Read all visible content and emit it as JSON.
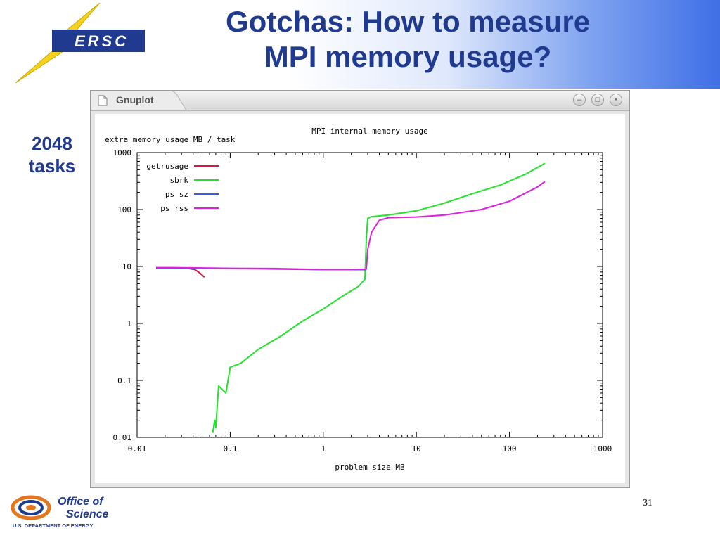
{
  "slide": {
    "title_line1": "Gotchas: How to measure",
    "title_line2": "MPI memory usage?",
    "side_label_line1": "2048",
    "side_label_line2": "tasks",
    "page_number": "31"
  },
  "logos": {
    "nersc_text": "ERSC",
    "office_line1": "Office of",
    "office_line2": "Science",
    "office_line3": "U.S. DEPARTMENT OF ENERGY"
  },
  "window": {
    "title": "Gnuplot",
    "icon": "document-icon",
    "controls": [
      "minimize-icon",
      "maximize-icon",
      "close-icon"
    ]
  },
  "colors": {
    "title": "#1f3a8f",
    "getrusage": "#d8173d",
    "sbrk": "#22e22a",
    "ps_sz": "#3b5bdb",
    "ps_rss": "#e01ee0"
  },
  "chart_data": {
    "type": "line",
    "title": "MPI internal memory usage",
    "xlabel": "problem size MB",
    "ylabel": "extra memory usage MB / task",
    "xscale": "log",
    "yscale": "log",
    "xlim": [
      0.01,
      1000
    ],
    "ylim": [
      0.01,
      1000
    ],
    "xticks": [
      "0.01",
      "0.1",
      "1",
      "10",
      "100",
      "1000"
    ],
    "yticks": [
      "0.01",
      "0.1",
      "1",
      "10",
      "100",
      "1000"
    ],
    "legend_position": "top-left",
    "grid": false,
    "series": [
      {
        "name": "getrusage",
        "color": "#d8173d",
        "x": [
          0.016,
          0.025,
          0.035,
          0.042,
          0.048,
          0.053
        ],
        "y": [
          9.5,
          9.5,
          9.3,
          8.8,
          7.5,
          6.5
        ]
      },
      {
        "name": "sbrk",
        "color": "#22e22a",
        "x": [
          0.065,
          0.068,
          0.07,
          0.075,
          0.09,
          0.1,
          0.13,
          0.2,
          0.35,
          0.6,
          1.0,
          1.6,
          2.4,
          2.8,
          2.9,
          3.0,
          3.3,
          5,
          10,
          20,
          40,
          80,
          150,
          240
        ],
        "y": [
          0.012,
          0.02,
          0.015,
          0.08,
          0.06,
          0.17,
          0.2,
          0.35,
          0.6,
          1.1,
          1.8,
          3.0,
          4.5,
          6.0,
          30,
          70,
          75,
          80,
          95,
          130,
          190,
          270,
          420,
          650
        ]
      },
      {
        "name": "ps sz",
        "color": "#3b5bdb",
        "x": [
          0.016,
          0.05,
          0.2,
          1.0,
          2.9
        ],
        "y": [
          9.3,
          9.3,
          9.1,
          8.8,
          8.8
        ]
      },
      {
        "name": "ps rss",
        "color": "#e01ee0",
        "x": [
          0.016,
          0.03,
          0.1,
          0.3,
          1.0,
          2.0,
          2.9,
          3.0,
          3.3,
          4.0,
          5.0,
          10,
          20,
          50,
          100,
          200,
          240
        ],
        "y": [
          9.5,
          9.5,
          9.3,
          9.2,
          8.8,
          8.8,
          9.0,
          20,
          40,
          65,
          72,
          74,
          80,
          100,
          140,
          250,
          310
        ]
      }
    ]
  }
}
